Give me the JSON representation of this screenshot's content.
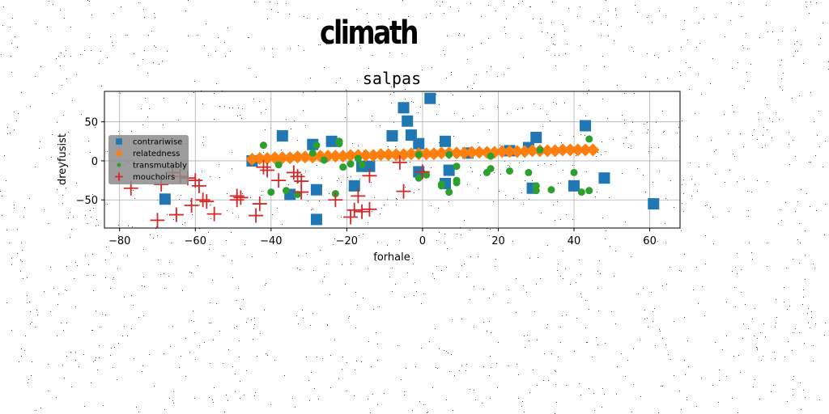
{
  "suptitle": "climath",
  "chart_data": {
    "type": "scatter",
    "title": "salpas",
    "xlabel": "forhale",
    "ylabel": "dreyfusist",
    "xlim": [
      -84,
      68
    ],
    "ylim": [
      -86,
      89
    ],
    "xticks": [
      -80,
      -60,
      -40,
      -20,
      0,
      20,
      40,
      60
    ],
    "yticks": [
      -50,
      0,
      50
    ],
    "grid": true,
    "legend_position": "center-left",
    "series": [
      {
        "name": "contrariwise",
        "marker": "square",
        "color": "#1f77b4",
        "points": [
          [
            -68,
            -49
          ],
          [
            -45,
            0
          ],
          [
            -37,
            32
          ],
          [
            -35,
            -43
          ],
          [
            -29,
            21
          ],
          [
            -28,
            -37
          ],
          [
            -28,
            -75
          ],
          [
            -24,
            25
          ],
          [
            -18,
            -32
          ],
          [
            -16,
            -7
          ],
          [
            -14,
            -7
          ],
          [
            -8,
            32
          ],
          [
            -5,
            68
          ],
          [
            -4,
            51
          ],
          [
            -3,
            33
          ],
          [
            -1,
            22
          ],
          [
            -1,
            -14
          ],
          [
            2,
            80
          ],
          [
            6,
            -29
          ],
          [
            6,
            25
          ],
          [
            7,
            -12
          ],
          [
            12,
            10
          ],
          [
            23,
            13
          ],
          [
            28,
            17
          ],
          [
            29,
            -35
          ],
          [
            30,
            30
          ],
          [
            40,
            -32
          ],
          [
            43,
            45
          ],
          [
            48,
            -22
          ],
          [
            61,
            -55
          ]
        ]
      },
      {
        "name": "relatedness",
        "marker": "diamond",
        "color": "#ff7f0e",
        "points": [
          [
            -45,
            2
          ],
          [
            -43,
            3
          ],
          [
            -41,
            3
          ],
          [
            -39,
            4
          ],
          [
            -37,
            4
          ],
          [
            -35,
            4
          ],
          [
            -33,
            5
          ],
          [
            -31,
            5
          ],
          [
            -29,
            5
          ],
          [
            -27,
            6
          ],
          [
            -25,
            6
          ],
          [
            -23,
            6
          ],
          [
            -21,
            6
          ],
          [
            -19,
            7
          ],
          [
            -17,
            7
          ],
          [
            -15,
            7
          ],
          [
            -13,
            7
          ],
          [
            -11,
            8
          ],
          [
            -9,
            8
          ],
          [
            -7,
            8
          ],
          [
            -5,
            8
          ],
          [
            -3,
            9
          ],
          [
            -1,
            9
          ],
          [
            1,
            9
          ],
          [
            3,
            9
          ],
          [
            5,
            10
          ],
          [
            7,
            10
          ],
          [
            9,
            10
          ],
          [
            11,
            10
          ],
          [
            13,
            11
          ],
          [
            15,
            11
          ],
          [
            17,
            11
          ],
          [
            19,
            11
          ],
          [
            21,
            12
          ],
          [
            23,
            12
          ],
          [
            25,
            12
          ],
          [
            27,
            12
          ],
          [
            29,
            13
          ],
          [
            31,
            13
          ],
          [
            33,
            13
          ],
          [
            35,
            13
          ],
          [
            37,
            14
          ],
          [
            39,
            14
          ],
          [
            41,
            14
          ],
          [
            43,
            14
          ],
          [
            45,
            14
          ]
        ]
      },
      {
        "name": "transmutably",
        "marker": "circle",
        "color": "#2ca02c",
        "points": [
          [
            -42,
            20
          ],
          [
            -40,
            -40
          ],
          [
            -38,
            -5
          ],
          [
            -36,
            -38
          ],
          [
            -33,
            -43
          ],
          [
            -29,
            10
          ],
          [
            -28,
            20
          ],
          [
            -26,
            1
          ],
          [
            -23,
            -42
          ],
          [
            -22,
            22
          ],
          [
            -22,
            25
          ],
          [
            -21,
            -8
          ],
          [
            -19,
            -4
          ],
          [
            -17,
            3
          ],
          [
            -16,
            -5
          ],
          [
            -1,
            -22
          ],
          [
            -1,
            8
          ],
          [
            1,
            -18
          ],
          [
            5,
            -32
          ],
          [
            5,
            -30
          ],
          [
            7,
            8
          ],
          [
            7,
            -40
          ],
          [
            9,
            -25
          ],
          [
            9,
            -28
          ],
          [
            9,
            -7
          ],
          [
            17,
            -15
          ],
          [
            18,
            -10
          ],
          [
            18,
            6
          ],
          [
            23,
            -13
          ],
          [
            28,
            -15
          ],
          [
            30,
            -32
          ],
          [
            30,
            -38
          ],
          [
            31,
            14
          ],
          [
            34,
            -37
          ],
          [
            40,
            -15
          ],
          [
            42,
            -40
          ],
          [
            44,
            28
          ],
          [
            44,
            -38
          ]
        ]
      },
      {
        "name": "mouchoirs",
        "marker": "plus",
        "color": "#d62728",
        "points": [
          [
            -77,
            -35
          ],
          [
            -70,
            -76
          ],
          [
            -69,
            -30
          ],
          [
            -66,
            -15
          ],
          [
            -65,
            -69
          ],
          [
            -64,
            -20
          ],
          [
            -62,
            -22
          ],
          [
            -61,
            -57
          ],
          [
            -60,
            -25
          ],
          [
            -59,
            -32
          ],
          [
            -58,
            -50
          ],
          [
            -57,
            -52
          ],
          [
            -55,
            -68
          ],
          [
            -49,
            -45
          ],
          [
            -49,
            -50
          ],
          [
            -48,
            -47
          ],
          [
            -44,
            -70
          ],
          [
            -43,
            -55
          ],
          [
            -42,
            -8
          ],
          [
            -41,
            -12
          ],
          [
            -38,
            -25
          ],
          [
            -34,
            -15
          ],
          [
            -33,
            -20
          ],
          [
            -32,
            -26
          ],
          [
            -32,
            -40
          ],
          [
            -23,
            -50
          ],
          [
            -19,
            -72
          ],
          [
            -18,
            -63
          ],
          [
            -17,
            -45
          ],
          [
            -16,
            -65
          ],
          [
            -14,
            -62
          ],
          [
            -14,
            -19
          ],
          [
            -6,
            -2
          ],
          [
            -5,
            -39
          ],
          [
            0,
            -14
          ]
        ]
      }
    ]
  }
}
